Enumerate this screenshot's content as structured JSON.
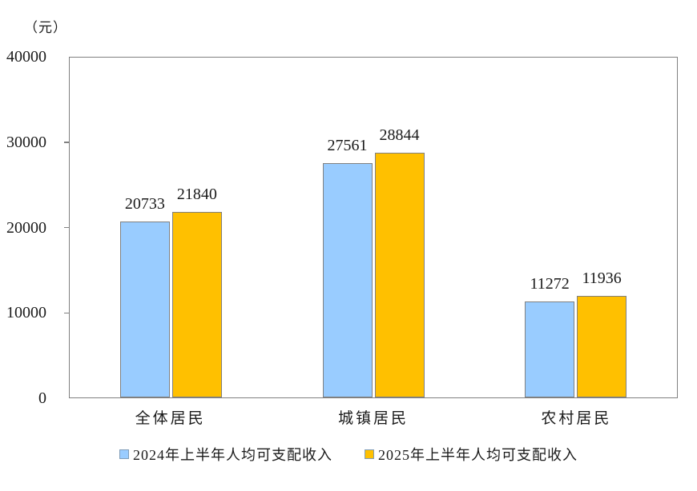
{
  "chart_data": {
    "type": "bar",
    "unit_label": "（元）",
    "categories": [
      "全体居民",
      "城镇居民",
      "农村居民"
    ],
    "series": [
      {
        "name": "2024年上半年人均可支配收入",
        "color": "#99CCFF",
        "border_color": "#808080",
        "values": [
          20733,
          27561,
          11272
        ]
      },
      {
        "name": "2025年上半年人均可支配收入",
        "color": "#FFC000",
        "border_color": "#808080",
        "values": [
          21840,
          28844,
          11936
        ]
      }
    ],
    "title": "",
    "xlabel": "",
    "ylabel": "（元）",
    "ylim": [
      0,
      40000
    ],
    "yticks": [
      0,
      10000,
      20000,
      30000,
      40000
    ],
    "inner_yticks_with_marks": [
      10000,
      20000,
      30000
    ],
    "grid": false,
    "value_labels": true,
    "legend_position": "bottom"
  },
  "colors": {
    "background": "#FFFFFF",
    "axis_border": "#808080",
    "text": "#1A1A1A"
  }
}
